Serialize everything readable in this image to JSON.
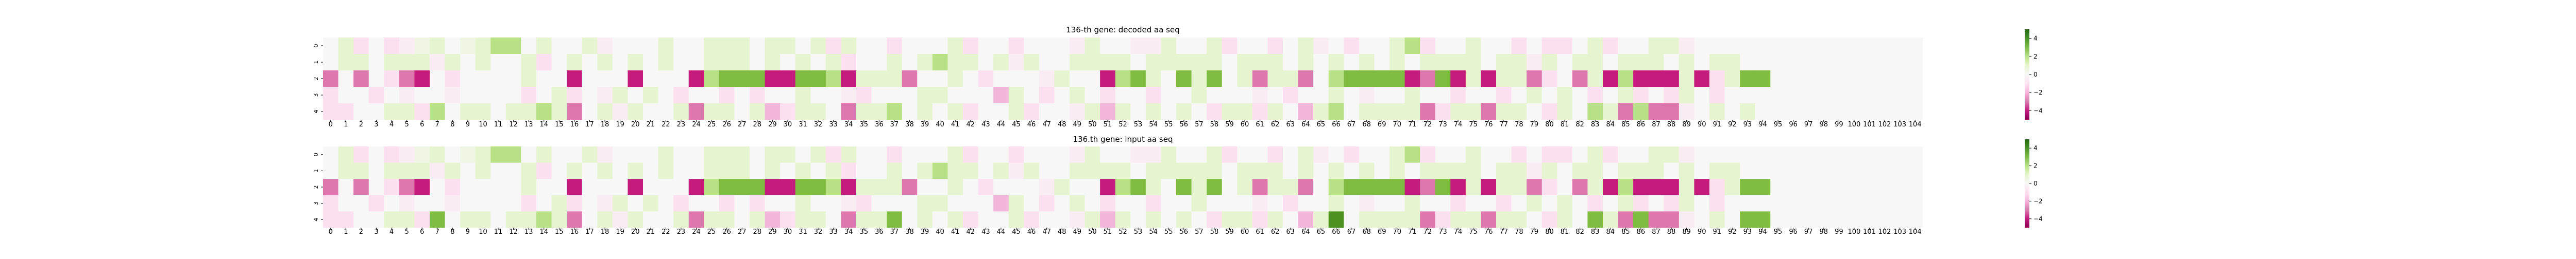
{
  "chart_data": [
    {
      "type": "heatmap",
      "title": "136-th gene: decoded aa seq",
      "xlabel": "",
      "ylabel": "",
      "x_ticks": [
        0,
        1,
        2,
        3,
        4,
        5,
        6,
        7,
        8,
        9,
        10,
        11,
        12,
        13,
        14,
        15,
        16,
        17,
        18,
        19,
        20,
        21,
        22,
        23,
        24,
        25,
        26,
        27,
        28,
        29,
        30,
        31,
        32,
        33,
        34,
        35,
        36,
        37,
        38,
        39,
        40,
        41,
        42,
        43,
        44,
        45,
        46,
        47,
        48,
        49,
        50,
        51,
        52,
        53,
        54,
        55,
        56,
        57,
        58,
        59,
        60,
        61,
        62,
        63,
        64,
        65,
        66,
        67,
        68,
        69,
        70,
        71,
        72,
        73,
        74,
        75,
        76,
        77,
        78,
        79,
        80,
        81,
        82,
        83,
        84,
        85,
        86,
        87,
        88,
        89,
        90,
        91,
        92,
        93,
        94,
        95,
        96,
        97,
        98,
        99,
        100,
        101,
        102,
        103,
        104
      ],
      "y_ticks": [
        0,
        1,
        2,
        3,
        4
      ],
      "colorbar": {
        "ticks": [
          4,
          2,
          0,
          -2,
          -4
        ],
        "vmin": -5,
        "vmax": 5,
        "colormap": "PiYG"
      },
      "valid_columns": 95,
      "values": [
        [
          0,
          1,
          -1,
          0,
          -1,
          -0.5,
          0.5,
          1,
          0,
          0.5,
          1,
          2,
          2,
          0,
          1,
          0,
          0,
          1,
          -0.5,
          0,
          0,
          0,
          1,
          0,
          0,
          1,
          1,
          1,
          0,
          1,
          1,
          0,
          1,
          -1,
          1,
          0,
          0,
          -1,
          0,
          0,
          0,
          1,
          -1,
          0,
          0,
          -1,
          0,
          0,
          0,
          -0.5,
          1,
          0,
          0,
          -0.5,
          -0.5,
          1,
          0,
          0,
          1,
          -1,
          0,
          0,
          -1,
          0,
          1,
          -0.5,
          0,
          -1,
          0,
          0,
          1,
          2,
          -1,
          0,
          0,
          1,
          0,
          0,
          -1,
          0,
          -1,
          -1,
          0,
          1,
          -1,
          0,
          0,
          1,
          1,
          -0.5,
          0,
          0,
          0,
          0,
          0
        ],
        [
          0,
          1,
          1,
          0,
          1,
          1,
          1,
          -0.5,
          1,
          0,
          1,
          0,
          0,
          1,
          -1,
          0,
          1,
          0,
          1,
          0,
          1,
          0,
          1,
          0,
          0,
          1,
          1,
          1,
          0,
          1,
          0,
          1,
          0,
          1,
          -1,
          0,
          0,
          1,
          0,
          1,
          2,
          1,
          1,
          0,
          1,
          -0.5,
          1,
          0,
          0,
          1,
          1,
          1,
          1,
          0,
          1,
          1,
          1,
          1,
          1,
          0,
          1,
          1,
          1,
          0,
          1,
          0,
          1,
          0,
          1,
          0,
          1,
          0,
          1,
          1,
          1,
          1,
          0,
          1,
          1,
          -0.5,
          1,
          0,
          1,
          1,
          0,
          1,
          1,
          1,
          0,
          1,
          0,
          1,
          1,
          0,
          0
        ],
        [
          -3,
          0,
          -3,
          0,
          -1,
          -3,
          -4,
          0,
          -1,
          0,
          0,
          0,
          0,
          1,
          0,
          0,
          -4,
          0,
          0,
          0,
          -4,
          0,
          0,
          0,
          -4,
          2,
          3,
          3,
          3,
          -4,
          -4,
          3,
          3,
          2,
          -4,
          1,
          1,
          1,
          -3,
          0,
          0,
          1,
          0,
          -1,
          0,
          0,
          0,
          -0.5,
          1,
          0,
          0,
          -4,
          2,
          3,
          1,
          0,
          3,
          1,
          3,
          0,
          1,
          -3,
          1,
          1,
          -3,
          0,
          2,
          3,
          3,
          3,
          3,
          -4,
          -3,
          3,
          -4,
          1,
          -4,
          1,
          1,
          -3,
          -1,
          0,
          -3,
          1,
          -4,
          2,
          -4,
          -4,
          -4,
          1,
          -4,
          -1,
          1,
          3,
          3
        ],
        [
          -1,
          0,
          0,
          -1,
          0,
          -0.5,
          0,
          0,
          -0.5,
          0,
          0,
          0,
          0,
          -1,
          0,
          1,
          -1,
          0,
          -0.5,
          1,
          0,
          1,
          0,
          -1,
          0,
          0,
          -1,
          0,
          -1,
          0,
          0,
          1,
          0,
          0,
          -0.5,
          -1,
          0,
          0,
          0,
          1,
          1,
          0,
          0,
          0,
          -2,
          1,
          0,
          -1,
          0,
          1,
          0,
          -1,
          0,
          0,
          -1,
          0,
          0,
          1,
          0,
          0,
          0,
          -0.5,
          0,
          -1,
          0,
          0,
          1,
          0,
          -0.5,
          0,
          0,
          1,
          0,
          0,
          -1,
          0,
          0,
          -1,
          0,
          1,
          0,
          1,
          0,
          -1,
          0,
          1,
          -1,
          0,
          -1,
          1,
          0,
          -1,
          0,
          0,
          0
        ],
        [
          -1,
          -1,
          0,
          0,
          1,
          1,
          -1,
          2,
          0,
          1,
          1,
          0,
          1,
          1,
          2,
          1,
          -3,
          0,
          1,
          -0.5,
          1,
          0,
          0,
          1,
          -3,
          1,
          1,
          0,
          1,
          -2,
          -1,
          1,
          1,
          0,
          -3,
          1,
          1,
          2,
          0,
          1,
          0,
          1,
          -1,
          0,
          0,
          1,
          -1,
          0,
          0,
          -0.5,
          1,
          -2,
          1,
          0,
          1,
          0,
          1,
          0,
          -1,
          1,
          1,
          -1,
          1,
          0,
          -2,
          1,
          2,
          0,
          1,
          1,
          1,
          1,
          -3,
          -1,
          1,
          1,
          -3,
          1,
          1,
          0,
          -1,
          1,
          0,
          2,
          1,
          -3,
          2,
          -3,
          -3,
          -0.5,
          0,
          1,
          0,
          1,
          0
        ]
      ]
    },
    {
      "type": "heatmap",
      "title": "136.th gene: input aa seq",
      "xlabel": "",
      "ylabel": "",
      "x_ticks": [
        0,
        1,
        2,
        3,
        4,
        5,
        6,
        7,
        8,
        9,
        10,
        11,
        12,
        13,
        14,
        15,
        16,
        17,
        18,
        19,
        20,
        21,
        22,
        23,
        24,
        25,
        26,
        27,
        28,
        29,
        30,
        31,
        32,
        33,
        34,
        35,
        36,
        37,
        38,
        39,
        40,
        41,
        42,
        43,
        44,
        45,
        46,
        47,
        48,
        49,
        50,
        51,
        52,
        53,
        54,
        55,
        56,
        57,
        58,
        59,
        60,
        61,
        62,
        63,
        64,
        65,
        66,
        67,
        68,
        69,
        70,
        71,
        72,
        73,
        74,
        75,
        76,
        77,
        78,
        79,
        80,
        81,
        82,
        83,
        84,
        85,
        86,
        87,
        88,
        89,
        90,
        91,
        92,
        93,
        94,
        95,
        96,
        97,
        98,
        99,
        100,
        101,
        102,
        103,
        104
      ],
      "y_ticks": [
        0,
        1,
        2,
        3,
        4
      ],
      "colorbar": {
        "ticks": [
          4,
          2,
          0,
          -2,
          -4
        ],
        "vmin": -5,
        "vmax": 5,
        "colormap": "PiYG"
      },
      "valid_columns": 95,
      "values": [
        [
          0,
          1,
          -1,
          0,
          -1,
          -0.5,
          0.5,
          1,
          0,
          0.5,
          1,
          2,
          2,
          0,
          1,
          0,
          0,
          1,
          -0.5,
          0,
          0,
          0,
          1,
          0,
          0,
          1,
          1,
          1,
          0,
          1,
          1,
          0,
          1,
          -1,
          1,
          0,
          0,
          -1,
          0,
          0,
          0,
          1,
          -1,
          0,
          0,
          -1,
          0,
          0,
          0,
          -0.5,
          1,
          0,
          0,
          -0.5,
          -0.5,
          1,
          0,
          0,
          1,
          -1,
          0,
          0,
          -1,
          0,
          1,
          -0.5,
          0,
          -1,
          0,
          0,
          1,
          2,
          -1,
          0,
          0,
          1,
          0,
          0,
          -1,
          0,
          -1,
          -1,
          0,
          1,
          -1,
          0,
          0,
          1,
          1,
          -0.5,
          0,
          0,
          0,
          0,
          0
        ],
        [
          0,
          1,
          1,
          0,
          1,
          1,
          1,
          -0.5,
          1,
          0,
          1,
          0,
          0,
          1,
          -1,
          0,
          1,
          0,
          1,
          0,
          1,
          0,
          1,
          0,
          0,
          1,
          1,
          1,
          0,
          1,
          0,
          1,
          0,
          1,
          -1,
          0,
          0,
          1,
          0,
          1,
          2,
          1,
          1,
          0,
          1,
          -0.5,
          1,
          0,
          0,
          1,
          1,
          1,
          1,
          0,
          1,
          1,
          1,
          1,
          1,
          0,
          1,
          1,
          1,
          0,
          1,
          0,
          1,
          0,
          1,
          0,
          1,
          0,
          1,
          1,
          1,
          1,
          0,
          1,
          1,
          -0.5,
          1,
          0,
          1,
          1,
          0,
          1,
          1,
          1,
          0,
          1,
          0,
          1,
          1,
          0,
          0
        ],
        [
          -3,
          0,
          -3,
          0,
          -1,
          -3,
          -4,
          0,
          -1,
          0,
          0,
          0,
          0,
          1,
          0,
          0,
          -4,
          0,
          0,
          0,
          -4,
          0,
          0,
          0,
          -4,
          2,
          3,
          3,
          3,
          -4,
          -4,
          3,
          3,
          2,
          -4,
          1,
          1,
          1,
          -3,
          0,
          0,
          1,
          0,
          -1,
          0,
          0,
          0,
          -0.5,
          1,
          0,
          0,
          -4,
          2,
          3,
          1,
          0,
          3,
          1,
          3,
          0,
          1,
          -3,
          1,
          1,
          -3,
          0,
          2,
          3,
          3,
          3,
          3,
          -4,
          -3,
          3,
          -4,
          1,
          -4,
          1,
          1,
          -3,
          -1,
          0,
          -3,
          1,
          -4,
          2,
          -4,
          -4,
          -4,
          1,
          -4,
          -1,
          1,
          3,
          3
        ],
        [
          -1,
          0,
          0,
          -1,
          0,
          -0.5,
          0,
          0,
          -0.5,
          0,
          0,
          0,
          0,
          -1,
          0,
          1,
          -1,
          0,
          -0.5,
          1,
          0,
          1,
          0,
          -1,
          0,
          0,
          -1,
          0,
          -1,
          0,
          0,
          1,
          0,
          0,
          -0.5,
          -1,
          0,
          0,
          0,
          1,
          1,
          0,
          0,
          0,
          -2,
          1,
          0,
          -1,
          0,
          1,
          0,
          -1,
          0,
          0,
          -1,
          0,
          0,
          1,
          0,
          0,
          0,
          -0.5,
          0,
          -1,
          0,
          0,
          1,
          0,
          -0.5,
          0,
          0,
          1,
          0,
          0,
          -1,
          0,
          0,
          -1,
          0,
          1,
          0,
          1,
          0,
          -1,
          0,
          1,
          -1,
          0,
          -1,
          1,
          0,
          -1,
          0,
          0,
          0
        ],
        [
          -1,
          -1,
          0,
          0,
          1,
          1,
          -1,
          3,
          0,
          1,
          1,
          0,
          1,
          1,
          2,
          1,
          -3,
          0,
          1,
          -0.5,
          1,
          0,
          0,
          1,
          -3,
          1,
          1,
          0,
          1,
          -2,
          -1,
          1,
          1,
          0,
          -3,
          1,
          1,
          3,
          0,
          1,
          0,
          1,
          -1,
          0,
          0,
          1,
          -1,
          0,
          0,
          -0.5,
          1,
          -2,
          1,
          0,
          1,
          0,
          1,
          0,
          -1,
          1,
          1,
          -1,
          1,
          0,
          -2,
          1,
          4,
          0,
          1,
          1,
          1,
          1,
          -3,
          -1,
          1,
          1,
          -3,
          1,
          1,
          0,
          -1,
          1,
          0,
          3,
          1,
          -3,
          3,
          -3,
          -3,
          -0.5,
          0,
          1,
          0,
          3,
          3
        ]
      ]
    }
  ]
}
